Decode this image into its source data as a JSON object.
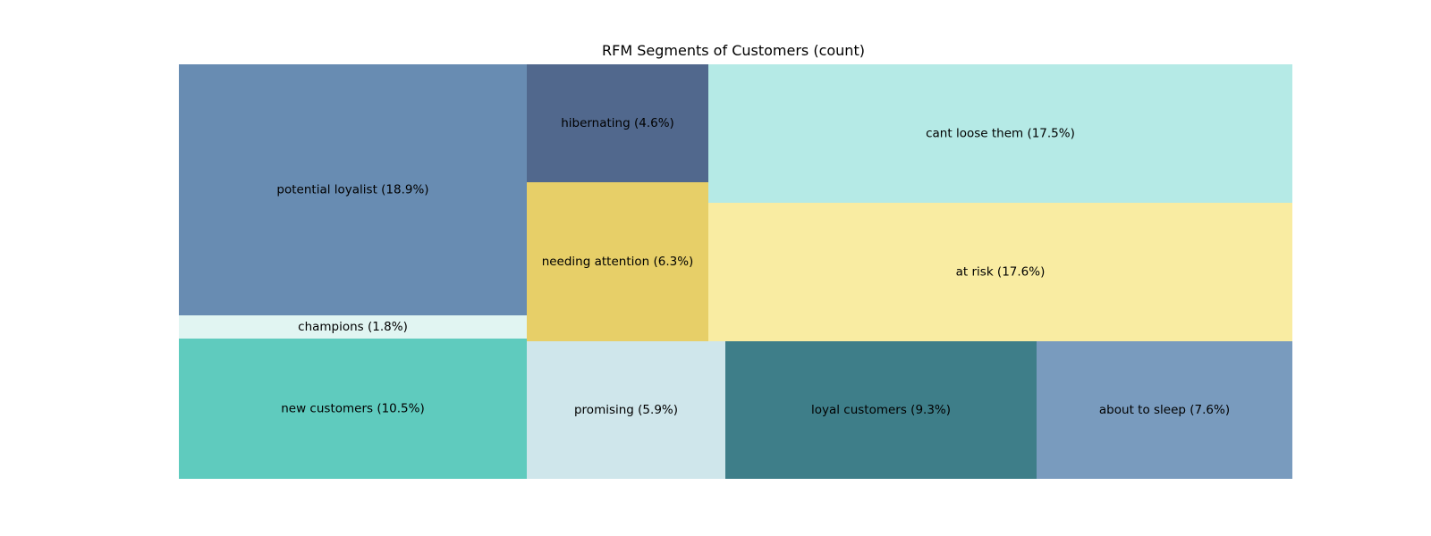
{
  "chart_data": {
    "type": "treemap",
    "title": "RFM Segments of Customers (count)",
    "segments": [
      {
        "name": "potential loyalist",
        "label": "potential loyalist (18.9%)",
        "percent": 18.9,
        "color": "#688cb2"
      },
      {
        "name": "champions",
        "label": "champions (1.8%)",
        "percent": 1.8,
        "color": "#e1f5f2"
      },
      {
        "name": "new customers",
        "label": "new customers (10.5%)",
        "percent": 10.5,
        "color": "#5fcbbe"
      },
      {
        "name": "hibernating",
        "label": "hibernating (4.6%)",
        "percent": 4.6,
        "color": "#51688d"
      },
      {
        "name": "needing attention",
        "label": "needing attention (6.3%)",
        "percent": 6.3,
        "color": "#e7cf68"
      },
      {
        "name": "cant loose them",
        "label": "cant loose them (17.5%)",
        "percent": 17.5,
        "color": "#b5eae6"
      },
      {
        "name": "at risk",
        "label": "at risk (17.6%)",
        "percent": 17.6,
        "color": "#f9eca2"
      },
      {
        "name": "promising",
        "label": "promising (5.9%)",
        "percent": 5.9,
        "color": "#cfe6eb"
      },
      {
        "name": "loyal customers",
        "label": "loyal customers (9.3%)",
        "percent": 9.3,
        "color": "#3e7e89"
      },
      {
        "name": "about to sleep",
        "label": "about to sleep (7.6%)",
        "percent": 7.6,
        "color": "#799bbe"
      }
    ]
  }
}
